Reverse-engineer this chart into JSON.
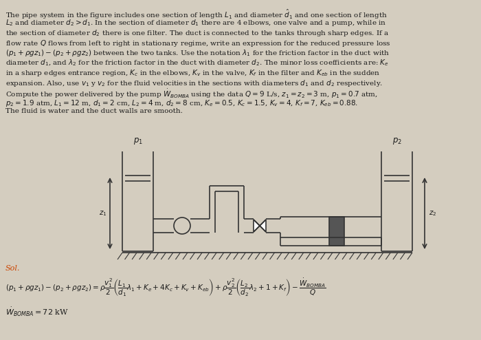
{
  "background_color": "#d4cdbf",
  "text_color": "#1a1a1a",
  "sol_color": "#cc4400",
  "pipe_color": "#333333",
  "bg_diagram": "#e8e0d0"
}
